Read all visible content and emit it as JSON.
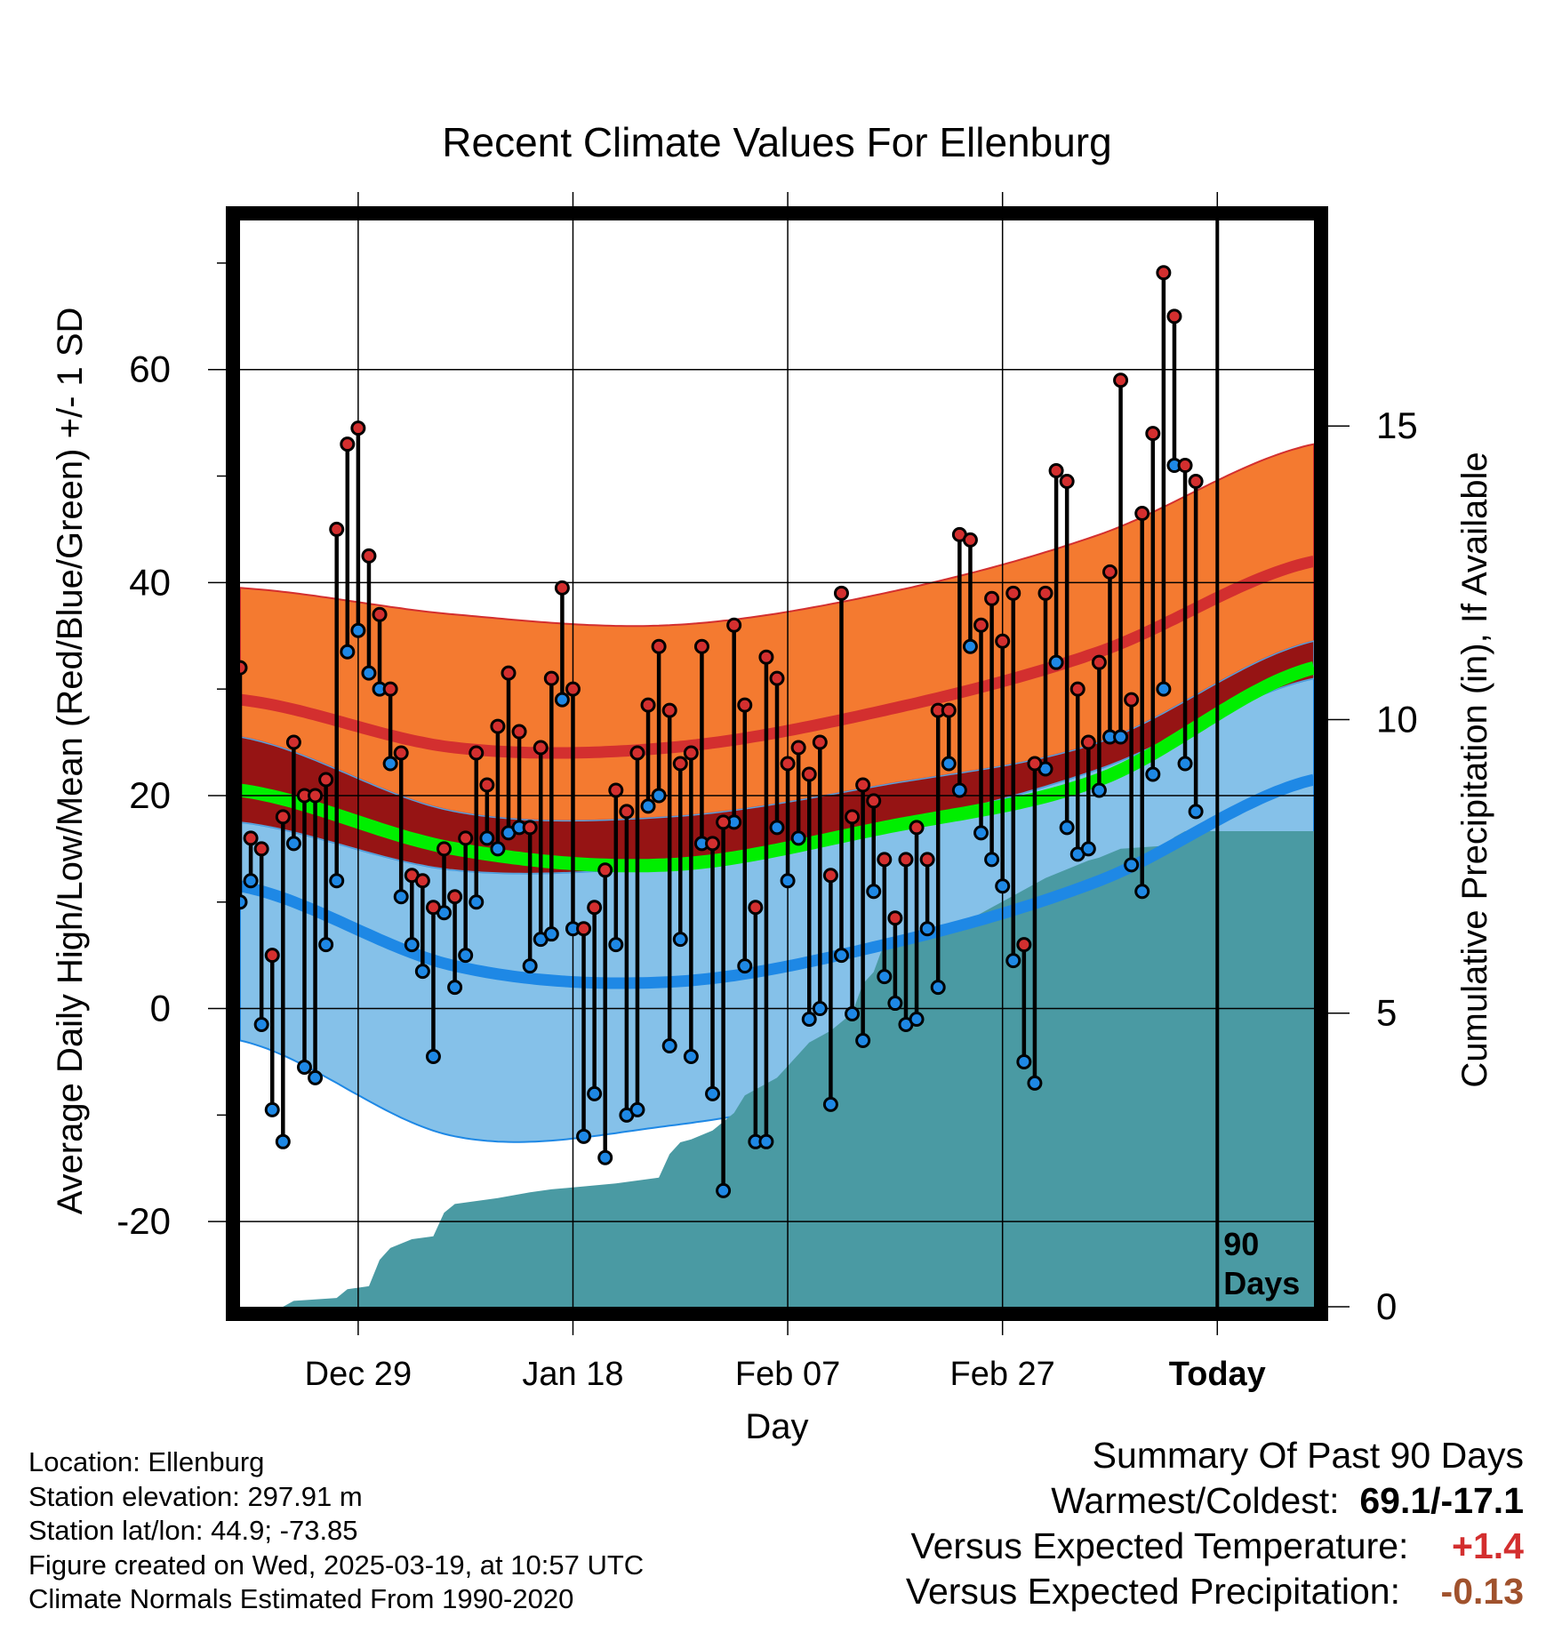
{
  "title": "Recent Climate Values For Ellenburg",
  "chart_data": {
    "type": "line",
    "title": "Recent Climate Values For Ellenburg",
    "xlabel": "Day",
    "ylabel": "Average Daily High/Low/Mean (Red/Blue/Green) +/- 1 SD",
    "y2label": "Cumulative Precipitation (in), If Available",
    "x_tick_labels": [
      "Dec 29",
      "Jan 18",
      "Feb 07",
      "Feb 27",
      "Today"
    ],
    "x_tick_days": [
      11,
      31,
      51,
      71,
      91
    ],
    "x_range_days": [
      0,
      100
    ],
    "ylim": [
      -28,
      74
    ],
    "y_ticks": [
      -20,
      0,
      20,
      40,
      60
    ],
    "y2lim": [
      0,
      18.5
    ],
    "y2_ticks": [
      0,
      5,
      10,
      15
    ],
    "today_label": "90 Days",
    "grid": true,
    "colors": {
      "high": "#d32f2f",
      "high_band": "#f47a30",
      "low": "#1e88e5",
      "low_band": "#85c1e9",
      "overlap": "#961414",
      "mean": "#00ef00",
      "precip": "#4a9aa3",
      "obs_line": "#000000",
      "temp_diff": "#d32f2f",
      "precip_diff": "#a0522d"
    },
    "normals": {
      "days": [
        0,
        20,
        40,
        60,
        80,
        100
      ],
      "high_plus_sd": [
        39.5,
        37,
        36,
        39,
        44.5,
        53
      ],
      "high_mean": [
        29,
        24.5,
        24.5,
        28,
        33.5,
        42
      ],
      "high_minus_sd": [
        25.5,
        18.5,
        18,
        21,
        25,
        34.5
      ],
      "mean": [
        20.5,
        15,
        13.5,
        17,
        21.5,
        32
      ],
      "low_plus_sd": [
        17.5,
        13,
        13.5,
        17,
        22.5,
        31
      ],
      "low_mean": [
        11.5,
        4,
        2.5,
        6,
        12,
        21.5
      ],
      "low_minus_sd": [
        -3,
        -12,
        -11,
        -7,
        0.5,
        11
      ]
    },
    "observations": {
      "day_start": 0,
      "highs": [
        32,
        16,
        15,
        5,
        18,
        25,
        20,
        20,
        21.5,
        45,
        53,
        54.5,
        42.5,
        37,
        30,
        24,
        12.5,
        12,
        9.5,
        15,
        10.5,
        16,
        24,
        21,
        26.5,
        31.5,
        26,
        17,
        24.5,
        31,
        39.5,
        30,
        7.5,
        9.5,
        13,
        20.5,
        18.5,
        24,
        28.5,
        34,
        28,
        23,
        24,
        34,
        15.5,
        17.5,
        36,
        28.5,
        9.5,
        33,
        31,
        23,
        24.5,
        22,
        25,
        12.5,
        39,
        18,
        21,
        19.5,
        14,
        8.5,
        14,
        17,
        14,
        28,
        28,
        44.5,
        44,
        36,
        38.5,
        34.5,
        39,
        6,
        23,
        39,
        50.5,
        49.5,
        30,
        25,
        32.5,
        41,
        59,
        29,
        46.5,
        54,
        69.1,
        65,
        51,
        49.5
      ],
      "lows": [
        10,
        12,
        -1.5,
        -9.5,
        -12.5,
        15.5,
        -5.5,
        -6.5,
        6,
        12,
        33.5,
        35.5,
        31.5,
        30,
        23,
        10.5,
        6,
        3.5,
        -4.5,
        9,
        2,
        5,
        10,
        16,
        15,
        16.5,
        17,
        4,
        6.5,
        7,
        29,
        7.5,
        -12,
        -8,
        -14,
        6,
        -10,
        -9.5,
        19,
        20,
        -3.5,
        6.5,
        -4.5,
        15.5,
        -8,
        -17.1,
        17.5,
        4,
        -12.5,
        -12.5,
        17,
        12,
        16,
        -1,
        0,
        -9,
        5,
        -0.5,
        -3,
        11,
        3,
        0.5,
        -1.5,
        -1,
        7.5,
        2,
        23,
        20.5,
        34,
        16.5,
        14,
        11.5,
        4.5,
        -5,
        -7,
        22.5,
        32.5,
        17,
        14.5,
        15,
        20.5,
        25.5,
        25.5,
        13.5,
        11,
        22,
        30,
        51,
        23,
        18.5
      ]
    },
    "precip_cumulative": {
      "days": [
        0,
        4,
        5,
        9,
        10,
        12,
        13,
        14,
        16,
        18,
        19,
        20,
        24,
        27,
        29,
        32,
        35,
        39,
        40,
        41,
        42,
        44,
        46,
        47,
        48,
        50,
        51,
        52,
        53,
        55,
        57,
        58,
        59,
        60,
        62,
        65,
        67,
        70,
        72,
        73,
        75,
        79,
        80,
        82,
        86,
        87,
        88,
        100
      ],
      "values": [
        0,
        0,
        0.1,
        0.15,
        0.3,
        0.35,
        0.8,
        1.0,
        1.15,
        1.2,
        1.6,
        1.75,
        1.85,
        1.95,
        2.0,
        2.05,
        2.1,
        2.2,
        2.6,
        2.8,
        2.85,
        3.0,
        3.3,
        3.6,
        3.7,
        3.9,
        4.1,
        4.3,
        4.5,
        4.7,
        5.0,
        5.5,
        5.7,
        6.2,
        6.3,
        6.4,
        6.5,
        6.8,
        7.0,
        7.1,
        7.3,
        7.6,
        7.65,
        7.8,
        7.85,
        8.0,
        8.1,
        8.1
      ]
    }
  },
  "footer": {
    "location": "Location: Ellenburg",
    "elevation": "Station elevation: 297.91 m",
    "latlon": "Station lat/lon: 44.9; -73.85",
    "created": "Figure created on Wed, 2025-03-19, at 10:57 UTC",
    "normals": "Climate Normals Estimated From 1990-2020"
  },
  "summary": {
    "heading": "Summary Of Past 90 Days",
    "warmest_coldest_label": "Warmest/Coldest:",
    "warmest_coldest_value": "69.1/-17.1",
    "temp_label": "Versus Expected Temperature:",
    "temp_value": "+1.4",
    "precip_label": "Versus Expected Precipitation:",
    "precip_value": "-0.13"
  }
}
